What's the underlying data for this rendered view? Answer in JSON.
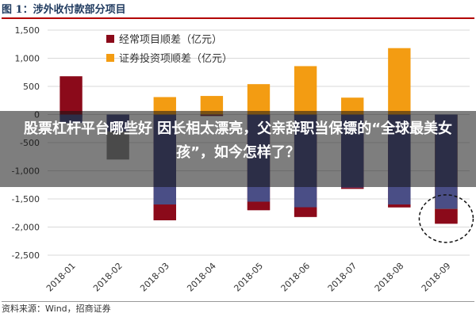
{
  "figure_title": "图 1：涉外收付款部分项目",
  "source_text": "资料来源：Wind，招商证券",
  "overlay_headline": "股票杠杆平台哪些好 因长相太漂亮，父亲辞职当保镖的“全球最美女孩”，如今怎样了？",
  "colors": {
    "current_account": "#8b0a1a",
    "securities": "#f39c12",
    "grey_segment": "#8c8c8c",
    "blue_segment": "#4a4e86",
    "gridline": "#d9d9d9"
  },
  "chart_data": {
    "type": "bar",
    "categories": [
      "2018-01",
      "2018-02",
      "2018-03",
      "2018-04",
      "2018-05",
      "2018-06",
      "2018-07",
      "2018-08",
      "2018-09"
    ],
    "yticks": [
      "1,500",
      "1,000",
      "500",
      "0",
      "-500",
      "-1,000",
      "-1,500",
      "-2,000",
      "-2,500"
    ],
    "ylim": [
      -2500,
      1500
    ],
    "legend_position": "top",
    "series": [
      {
        "name": "经常项目顺差（亿元）",
        "values": [
          680,
          -100,
          -1880,
          -20,
          -1700,
          -1820,
          -1320,
          -1650,
          -1940
        ]
      },
      {
        "name": "证券投资项顺差（亿元）",
        "values": [
          -20,
          -20,
          310,
          330,
          540,
          860,
          300,
          1180,
          -1920
        ]
      },
      {
        "name": "",
        "values": [
          -50,
          -800,
          -60,
          -30,
          -50,
          -50,
          -50,
          -40,
          -50
        ]
      },
      {
        "name": "",
        "values": [
          -150,
          -300,
          -1600,
          -10,
          -1550,
          -1650,
          -1300,
          -1600,
          -1680
        ]
      }
    ],
    "annotation": "dashed-circle-2018-09"
  }
}
